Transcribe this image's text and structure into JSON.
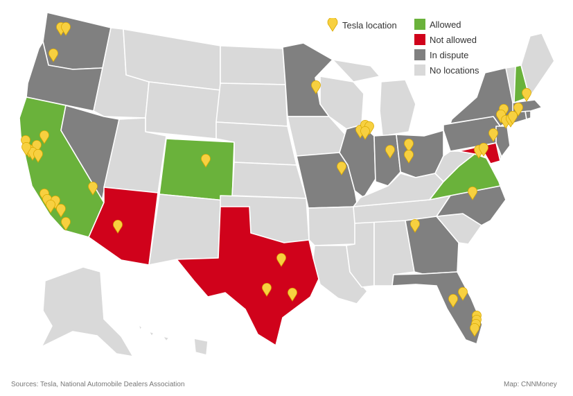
{
  "legend": {
    "tesla_location": "Tesla location",
    "allowed": "Allowed",
    "not_allowed": "Not allowed",
    "in_dispute": "In dispute",
    "no_locations": "No locations"
  },
  "colors": {
    "allowed": "#6ab23b",
    "not_allowed": "#d0021b",
    "in_dispute": "#808080",
    "no_locations": "#d9d9d9",
    "pin": "#f7d040",
    "border": "#ffffff"
  },
  "state_status": {
    "allowed": [
      "California",
      "Colorado",
      "Virginia",
      "New Hampshire"
    ],
    "not_allowed": [
      "Arizona",
      "Texas",
      "Maryland"
    ],
    "in_dispute": [
      "Washington",
      "Oregon",
      "Nevada",
      "Minnesota",
      "Missouri",
      "Illinois",
      "Indiana",
      "Ohio",
      "Pennsylvania",
      "New York",
      "New Jersey",
      "North Carolina",
      "Georgia",
      "Florida",
      "Massachusetts",
      "Connecticut",
      "Rhode Island"
    ],
    "no_locations": [
      "Idaho",
      "Montana",
      "Wyoming",
      "Utah",
      "New Mexico",
      "North Dakota",
      "South Dakota",
      "Nebraska",
      "Kansas",
      "Oklahoma",
      "Iowa",
      "Wisconsin",
      "Michigan",
      "Kentucky",
      "Tennessee",
      "Arkansas",
      "Louisiana",
      "Mississippi",
      "Alabama",
      "South Carolina",
      "West Virginia",
      "Maine",
      "Vermont",
      "Delaware",
      "Alaska",
      "Hawaii"
    ]
  },
  "footer": {
    "sources": "Sources: Tesla, National Automobile Dealers Association",
    "credit": "Map: CNNMoney"
  }
}
